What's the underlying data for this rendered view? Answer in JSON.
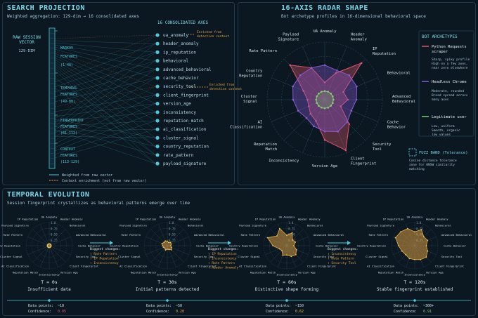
{
  "projection": {
    "title": "SEARCH PROJECTION",
    "subtitle": "Weighted aggregation: 129-dim → 16 consolidated axes",
    "raw_label_1": "RAW SESSION",
    "raw_label_2": "VECTOR",
    "raw_dim": "129-DIM",
    "consolidated_header": "16 CONSOLIDATED AXES",
    "groups": [
      {
        "name": "MARKOV",
        "name2": "FEATURES",
        "range": "(1-48)"
      },
      {
        "name": "TEMPORAL",
        "name2": "FEATURES",
        "range": "(49-80)"
      },
      {
        "name": "FINGERPRINT",
        "name2": "FEATURES",
        "range": "(81-112)"
      },
      {
        "name": "CONTEXT",
        "name2": "FEATURES",
        "range": "(113-129)"
      }
    ],
    "axes": [
      "ua_anomaly",
      "header_anomaly",
      "ip_reputation",
      "behavioral",
      "advanced_behavioral",
      "cache_behavior",
      "security_tool",
      "client_fingerprint",
      "version_age",
      "inconsistency",
      "reputation_match",
      "ai_classification",
      "cluster_signal",
      "country_reputation",
      "rate_pattern",
      "payload_signature"
    ],
    "enrich_note_1": "Enriched from",
    "enrich_note_2": "detection context",
    "legend_weighted": "Weighted from raw vector",
    "legend_context": "Context enrichment (not from raw vector)"
  },
  "radar": {
    "title": "16-AXIS RADAR SHAPE",
    "subtitle": "Bot archetype profiles in 16-dimensional behavioral space",
    "axes": [
      "UA Anomaly",
      "Header Anomaly",
      "IP Reputation",
      "Behavioral",
      "Advanced Behavioral",
      "Cache Behavior",
      "Security Tool",
      "Client Fingerprint",
      "Version Age",
      "Inconsistency",
      "Reputation Match",
      "AI Classification",
      "Cluster Signal",
      "Country Reputation",
      "Rate Pattern",
      "Payload Signature"
    ],
    "series": [
      {
        "name": "Python Requests scraper",
        "color": "#e0556a",
        "values": [
          0.3,
          0.5,
          0.9,
          0.35,
          0.4,
          0.3,
          0.6,
          0.95,
          0.7,
          0.4,
          0.35,
          0.3,
          0.3,
          0.4,
          0.85,
          0.6
        ]
      },
      {
        "name": "Headless Chrome",
        "color": "#8a5ad8",
        "values": [
          0.6,
          0.55,
          0.6,
          0.6,
          0.55,
          0.5,
          0.55,
          0.6,
          0.55,
          0.5,
          0.45,
          0.5,
          0.55,
          0.6,
          0.6,
          0.6
        ]
      },
      {
        "name": "Legitimate user",
        "color": "#7fd070",
        "values": [
          0.15,
          0.15,
          0.15,
          0.15,
          0.15,
          0.15,
          0.15,
          0.15,
          0.15,
          0.15,
          0.15,
          0.15,
          0.15,
          0.15,
          0.15,
          0.15
        ]
      }
    ],
    "legend_title": "BOT ARCHETYPES",
    "legend_desc": [
      [
        "Sharp, spiky profile",
        "High on a few axes,",
        "near zero elsewhere"
      ],
      [
        "Moderate, rounded",
        "Broad spread across",
        "many axes"
      ],
      [
        "Low, uniform",
        "Smooth, organic",
        "low values"
      ]
    ],
    "fuzz_title": "FUZZ BAND (Tolerance)",
    "fuzz_desc": [
      "Cosine distance tolerance",
      "zone for HNSW similarity",
      "matching"
    ]
  },
  "temporal": {
    "title": "TEMPORAL EVOLUTION",
    "subtitle": "Session fingerprint crystallizes as behavioral patterns emerge over time",
    "axes": [
      "UA Anomaly",
      "Header Anomaly",
      "Behavioral",
      "Advanced Behavioral",
      "Cache Behavior",
      "Security Tool",
      "Client Fingerprint",
      "Version Age",
      "Inconsistency",
      "Reputation Match",
      "AI Classification",
      "Cluster Signal",
      "Country Reputation",
      "Rate Pattern",
      "Payload Signature",
      "IP Reputation"
    ],
    "ticks": [
      "1.0",
      "0.75",
      "0.50",
      "0.25"
    ],
    "changes_title": "Biggest changes:",
    "stages": [
      {
        "time": "T = 0s",
        "caption": "Insufficient data",
        "points_label": "Data points:",
        "points": "~10",
        "conf_label": "Confidence:",
        "conf": "0.05",
        "conf_color": "#e0556a",
        "values": [
          0.08,
          0.08,
          0.08,
          0.08,
          0.08,
          0.08,
          0.08,
          0.08,
          0.08,
          0.08,
          0.08,
          0.08,
          0.08,
          0.08,
          0.08,
          0.08
        ],
        "changes": []
      },
      {
        "time": "T = 30s",
        "caption": "Initial patterns detected",
        "points_label": "Data points:",
        "points": "~50",
        "conf_label": "Confidence:",
        "conf": "0.28",
        "conf_color": "#e8a440",
        "values": [
          0.2,
          0.15,
          0.2,
          0.18,
          0.15,
          0.2,
          0.25,
          0.18,
          0.15,
          0.2,
          0.15,
          0.18,
          0.2,
          0.25,
          0.2,
          0.22
        ],
        "changes": [
          "↑ Rate Pattern",
          "↑ IP Reputation",
          "↑ Inconsistency"
        ]
      },
      {
        "time": "T = 60s",
        "caption": "Distinctive shape forming",
        "points_label": "Data points:",
        "points": "~150",
        "conf_label": "Confidence:",
        "conf": "0.62",
        "conf_color": "#e8c040",
        "values": [
          0.45,
          0.6,
          0.35,
          0.4,
          0.3,
          0.45,
          0.55,
          0.5,
          0.4,
          0.45,
          0.3,
          0.35,
          0.6,
          0.9,
          0.6,
          0.8
        ],
        "changes": [
          "↑ IP Reputation",
          "↑ Inconsistency",
          "↑ Rate Pattern",
          "↑ Header Anomaly"
        ]
      },
      {
        "time": "T = 120s",
        "caption": "Stable fingerprint established",
        "points_label": "Data points:",
        "points": "~300+",
        "conf_label": "Confidence:",
        "conf": "0.91",
        "conf_color": "#7fd070",
        "values": [
          0.6,
          0.75,
          0.55,
          0.6,
          0.5,
          0.6,
          0.7,
          0.65,
          0.6,
          0.6,
          0.55,
          0.6,
          0.7,
          0.9,
          0.85,
          0.8
        ],
        "changes": [
          "↑ Inconsistency",
          "↑ Rate Pattern",
          "↑ Security Tool"
        ]
      }
    ]
  }
}
